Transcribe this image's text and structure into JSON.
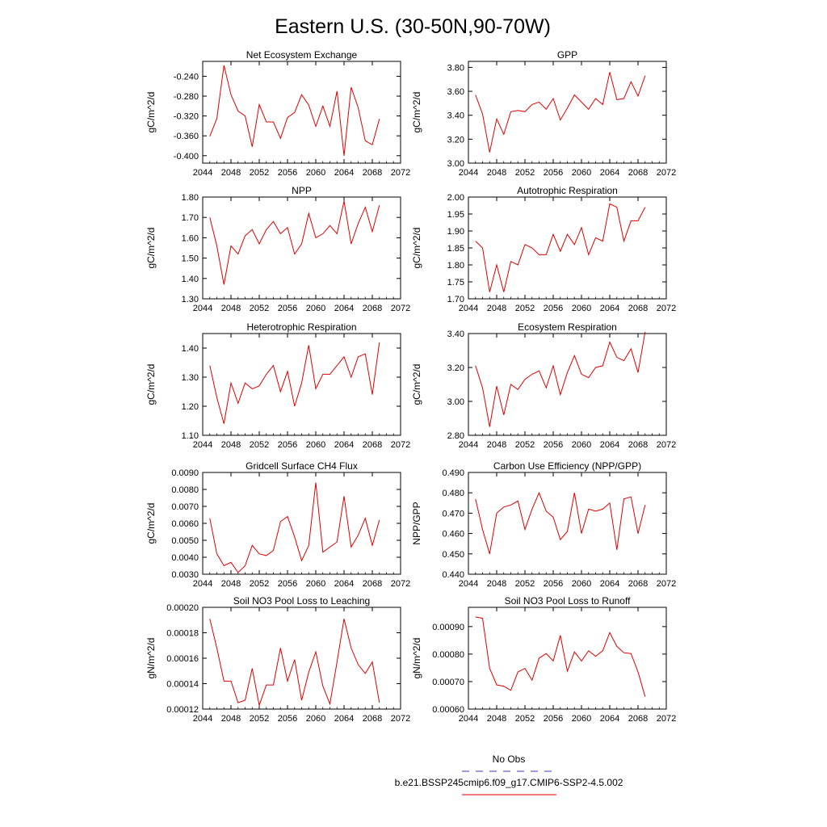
{
  "title": "Eastern U.S. (30-50N,90-70W)",
  "legend": {
    "placement": "bottom-right",
    "entries": [
      {
        "label": "No Obs",
        "color": "#3a3acc",
        "dash": "dashed"
      },
      {
        "label": "b.e21.BSSP245cmip6.f09_g17.CMIP6-SSP2-4.5.002",
        "color": "#e00000",
        "dash": "solid"
      }
    ]
  },
  "chart_data": [
    {
      "type": "line",
      "title": "Net Ecosystem Exchange",
      "ylabel": "gC/m^2/d",
      "xlim": [
        2044,
        2072
      ],
      "xticks": [
        "2044",
        "2048",
        "2052",
        "2056",
        "2060",
        "2064",
        "2068",
        "2072"
      ],
      "ylim": [
        -0.415,
        -0.21
      ],
      "yticks": [
        "-0.240",
        "-0.280",
        "-0.320",
        "-0.360",
        "-0.400"
      ],
      "ytick_values": [
        -0.24,
        -0.28,
        -0.32,
        -0.36,
        -0.4
      ],
      "series": [
        {
          "color": "#e00000",
          "x": [
            2045,
            2046,
            2047,
            2048,
            2049,
            2050,
            2051,
            2052,
            2053,
            2054,
            2055,
            2056,
            2057,
            2058,
            2059,
            2060,
            2061,
            2062,
            2063,
            2064,
            2065,
            2066,
            2067,
            2068,
            2069
          ],
          "values": [
            -0.361,
            -0.325,
            -0.218,
            -0.277,
            -0.31,
            -0.32,
            -0.382,
            -0.297,
            -0.332,
            -0.332,
            -0.365,
            -0.323,
            -0.313,
            -0.277,
            -0.298,
            -0.341,
            -0.3,
            -0.341,
            -0.27,
            -0.4,
            -0.262,
            -0.303,
            -0.37,
            -0.378,
            -0.326
          ]
        }
      ]
    },
    {
      "type": "line",
      "title": "GPP",
      "ylabel": "gC/m^2/d",
      "xlim": [
        2044,
        2072
      ],
      "xticks": [
        "2044",
        "2048",
        "2052",
        "2056",
        "2060",
        "2064",
        "2068",
        "2072"
      ],
      "ylim": [
        3.0,
        3.85
      ],
      "yticks": [
        "3.00",
        "3.20",
        "3.40",
        "3.60",
        "3.80"
      ],
      "ytick_values": [
        3.0,
        3.2,
        3.4,
        3.6,
        3.8
      ],
      "series": [
        {
          "color": "#e00000",
          "x": [
            2045,
            2046,
            2047,
            2048,
            2049,
            2050,
            2051,
            2052,
            2053,
            2054,
            2055,
            2056,
            2057,
            2058,
            2059,
            2060,
            2061,
            2062,
            2063,
            2064,
            2065,
            2066,
            2067,
            2068,
            2069
          ],
          "values": [
            3.57,
            3.41,
            3.09,
            3.37,
            3.24,
            3.43,
            3.44,
            3.43,
            3.49,
            3.51,
            3.45,
            3.54,
            3.36,
            3.46,
            3.57,
            3.51,
            3.45,
            3.54,
            3.49,
            3.76,
            3.53,
            3.54,
            3.68,
            3.56,
            3.73
          ]
        }
      ]
    },
    {
      "type": "line",
      "title": "NPP",
      "ylabel": "gC/m^2/d",
      "xlim": [
        2044,
        2072
      ],
      "xticks": [
        "2044",
        "2048",
        "2052",
        "2056",
        "2060",
        "2064",
        "2068",
        "2072"
      ],
      "ylim": [
        1.3,
        1.8
      ],
      "yticks": [
        "1.30",
        "1.40",
        "1.50",
        "1.60",
        "1.70",
        "1.80"
      ],
      "ytick_values": [
        1.3,
        1.4,
        1.5,
        1.6,
        1.7,
        1.8
      ],
      "series": [
        {
          "color": "#e00000",
          "x": [
            2045,
            2046,
            2047,
            2048,
            2049,
            2050,
            2051,
            2052,
            2053,
            2054,
            2055,
            2056,
            2057,
            2058,
            2059,
            2060,
            2061,
            2062,
            2063,
            2064,
            2065,
            2066,
            2067,
            2068,
            2069
          ],
          "values": [
            1.7,
            1.56,
            1.37,
            1.56,
            1.52,
            1.61,
            1.64,
            1.57,
            1.64,
            1.68,
            1.62,
            1.65,
            1.52,
            1.57,
            1.72,
            1.6,
            1.62,
            1.66,
            1.62,
            1.78,
            1.57,
            1.67,
            1.75,
            1.63,
            1.76
          ]
        }
      ]
    },
    {
      "type": "line",
      "title": "Autotrophic Respiration",
      "ylabel": "gC/m^2/d",
      "xlim": [
        2044,
        2072
      ],
      "xticks": [
        "2044",
        "2048",
        "2052",
        "2056",
        "2060",
        "2064",
        "2068",
        "2072"
      ],
      "ylim": [
        1.7,
        2.0
      ],
      "yticks": [
        "1.70",
        "1.75",
        "1.80",
        "1.85",
        "1.90",
        "1.95",
        "2.00"
      ],
      "ytick_values": [
        1.7,
        1.75,
        1.8,
        1.85,
        1.9,
        1.95,
        2.0
      ],
      "series": [
        {
          "color": "#e00000",
          "x": [
            2045,
            2046,
            2047,
            2048,
            2049,
            2050,
            2051,
            2052,
            2053,
            2054,
            2055,
            2056,
            2057,
            2058,
            2059,
            2060,
            2061,
            2062,
            2063,
            2064,
            2065,
            2066,
            2067,
            2068,
            2069
          ],
          "values": [
            1.87,
            1.85,
            1.72,
            1.8,
            1.72,
            1.81,
            1.8,
            1.86,
            1.85,
            1.83,
            1.83,
            1.89,
            1.84,
            1.89,
            1.86,
            1.91,
            1.83,
            1.88,
            1.87,
            1.98,
            1.97,
            1.87,
            1.93,
            1.93,
            1.97
          ]
        }
      ]
    },
    {
      "type": "line",
      "title": "Heterotrophic Respiration",
      "ylabel": "gC/m^2/d",
      "xlim": [
        2044,
        2072
      ],
      "xticks": [
        "2044",
        "2048",
        "2052",
        "2056",
        "2060",
        "2064",
        "2068",
        "2072"
      ],
      "ylim": [
        1.1,
        1.45
      ],
      "yticks": [
        "1.10",
        "1.20",
        "1.30",
        "1.40"
      ],
      "ytick_values": [
        1.1,
        1.2,
        1.3,
        1.4
      ],
      "series": [
        {
          "color": "#e00000",
          "x": [
            2045,
            2046,
            2047,
            2048,
            2049,
            2050,
            2051,
            2052,
            2053,
            2054,
            2055,
            2056,
            2057,
            2058,
            2059,
            2060,
            2061,
            2062,
            2063,
            2064,
            2065,
            2066,
            2067,
            2068,
            2069
          ],
          "values": [
            1.34,
            1.23,
            1.14,
            1.28,
            1.21,
            1.28,
            1.26,
            1.27,
            1.31,
            1.34,
            1.25,
            1.32,
            1.2,
            1.28,
            1.41,
            1.26,
            1.31,
            1.31,
            1.34,
            1.37,
            1.3,
            1.37,
            1.38,
            1.24,
            1.42
          ]
        }
      ]
    },
    {
      "type": "line",
      "title": "Ecosystem Respiration",
      "ylabel": "gC/m^2/d",
      "xlim": [
        2044,
        2072
      ],
      "xticks": [
        "2044",
        "2048",
        "2052",
        "2056",
        "2060",
        "2064",
        "2068",
        "2072"
      ],
      "ylim": [
        2.8,
        3.4
      ],
      "yticks": [
        "2.80",
        "3.00",
        "3.20",
        "3.40"
      ],
      "ytick_values": [
        2.8,
        3.0,
        3.2,
        3.4
      ],
      "series": [
        {
          "color": "#e00000",
          "x": [
            2045,
            2046,
            2047,
            2048,
            2049,
            2050,
            2051,
            2052,
            2053,
            2054,
            2055,
            2056,
            2057,
            2058,
            2059,
            2060,
            2061,
            2062,
            2063,
            2064,
            2065,
            2066,
            2067,
            2068,
            2069
          ],
          "values": [
            3.21,
            3.08,
            2.85,
            3.09,
            2.92,
            3.1,
            3.07,
            3.13,
            3.16,
            3.18,
            3.08,
            3.21,
            3.04,
            3.17,
            3.27,
            3.16,
            3.14,
            3.2,
            3.21,
            3.35,
            3.26,
            3.24,
            3.31,
            3.17,
            3.41
          ]
        }
      ]
    },
    {
      "type": "line",
      "title": "Gridcell Surface CH4 Flux",
      "ylabel": "gC/m^2/d",
      "xlim": [
        2044,
        2072
      ],
      "xticks": [
        "2044",
        "2048",
        "2052",
        "2056",
        "2060",
        "2064",
        "2068",
        "2072"
      ],
      "ylim": [
        0.003,
        0.009
      ],
      "yticks": [
        "0.0030",
        "0.0040",
        "0.0050",
        "0.0060",
        "0.0070",
        "0.0080",
        "0.0090"
      ],
      "ytick_values": [
        0.003,
        0.004,
        0.005,
        0.006,
        0.007,
        0.008,
        0.009
      ],
      "series": [
        {
          "color": "#e00000",
          "x": [
            2045,
            2046,
            2047,
            2048,
            2049,
            2050,
            2051,
            2052,
            2053,
            2054,
            2055,
            2056,
            2057,
            2058,
            2059,
            2060,
            2061,
            2062,
            2063,
            2064,
            2065,
            2066,
            2067,
            2068,
            2069
          ],
          "values": [
            0.0063,
            0.0042,
            0.0035,
            0.0037,
            0.0031,
            0.0035,
            0.0047,
            0.0042,
            0.0041,
            0.0044,
            0.0061,
            0.0064,
            0.0052,
            0.0038,
            0.0047,
            0.0084,
            0.0043,
            0.0046,
            0.0049,
            0.0076,
            0.0046,
            0.0053,
            0.0063,
            0.0047,
            0.0062
          ]
        }
      ]
    },
    {
      "type": "line",
      "title": "Carbon Use Efficiency (NPP/GPP)",
      "ylabel": "NPP/GPP",
      "xlim": [
        2044,
        2072
      ],
      "xticks": [
        "2044",
        "2048",
        "2052",
        "2056",
        "2060",
        "2064",
        "2068",
        "2072"
      ],
      "ylim": [
        0.44,
        0.49
      ],
      "yticks": [
        "0.440",
        "0.450",
        "0.460",
        "0.470",
        "0.480",
        "0.490"
      ],
      "ytick_values": [
        0.44,
        0.45,
        0.46,
        0.47,
        0.48,
        0.49
      ],
      "series": [
        {
          "color": "#e00000",
          "x": [
            2045,
            2046,
            2047,
            2048,
            2049,
            2050,
            2051,
            2052,
            2053,
            2054,
            2055,
            2056,
            2057,
            2058,
            2059,
            2060,
            2061,
            2062,
            2063,
            2064,
            2065,
            2066,
            2067,
            2068,
            2069
          ],
          "values": [
            0.477,
            0.462,
            0.45,
            0.47,
            0.473,
            0.474,
            0.476,
            0.462,
            0.472,
            0.48,
            0.471,
            0.468,
            0.457,
            0.461,
            0.48,
            0.46,
            0.472,
            0.471,
            0.472,
            0.475,
            0.452,
            0.477,
            0.478,
            0.46,
            0.474
          ]
        }
      ]
    },
    {
      "type": "line",
      "title": "Soil NO3 Pool Loss to Leaching",
      "ylabel": "gN/m^2/d",
      "xlim": [
        2044,
        2072
      ],
      "xticks": [
        "2044",
        "2048",
        "2052",
        "2056",
        "2060",
        "2064",
        "2068",
        "2072"
      ],
      "ylim": [
        0.00012,
        0.0002
      ],
      "yticks": [
        "0.00012",
        "0.00014",
        "0.00016",
        "0.00018",
        "0.00020"
      ],
      "ytick_values": [
        0.00012,
        0.00014,
        0.00016,
        0.00018,
        0.0002
      ],
      "series": [
        {
          "color": "#e00000",
          "x": [
            2045,
            2046,
            2047,
            2048,
            2049,
            2050,
            2051,
            2052,
            2053,
            2054,
            2055,
            2056,
            2057,
            2058,
            2059,
            2060,
            2061,
            2062,
            2063,
            2064,
            2065,
            2066,
            2067,
            2068,
            2069
          ],
          "values": [
            0.000191,
            0.000168,
            0.000142,
            0.000142,
            0.000125,
            0.000127,
            0.000152,
            0.000123,
            0.000139,
            0.000139,
            0.000168,
            0.000142,
            0.000159,
            0.000127,
            0.000149,
            0.000165,
            0.000138,
            0.000124,
            0.000157,
            0.000191,
            0.000168,
            0.000155,
            0.000148,
            0.000157,
            0.000125
          ]
        }
      ]
    },
    {
      "type": "line",
      "title": "Soil NO3 Pool Loss to Runoff",
      "ylabel": "gN/m^2/d",
      "xlim": [
        2044,
        2072
      ],
      "xticks": [
        "2044",
        "2048",
        "2052",
        "2056",
        "2060",
        "2064",
        "2068",
        "2072"
      ],
      "ylim": [
        0.0006,
        0.00097
      ],
      "yticks": [
        "0.00060",
        "0.00070",
        "0.00080",
        "0.00090"
      ],
      "ytick_values": [
        0.0006,
        0.0007,
        0.0008,
        0.0009
      ],
      "series": [
        {
          "color": "#e00000",
          "x": [
            2045,
            2046,
            2047,
            2048,
            2049,
            2050,
            2051,
            2052,
            2053,
            2054,
            2055,
            2056,
            2057,
            2058,
            2059,
            2060,
            2061,
            2062,
            2063,
            2064,
            2065,
            2066,
            2067,
            2068,
            2069
          ],
          "values": [
            0.000935,
            0.00093,
            0.000748,
            0.000688,
            0.000683,
            0.000668,
            0.000735,
            0.000748,
            0.000705,
            0.000785,
            0.000802,
            0.000775,
            0.000868,
            0.000738,
            0.000808,
            0.000775,
            0.000812,
            0.000792,
            0.000812,
            0.000878,
            0.000828,
            0.000805,
            0.000802,
            0.000735,
            0.000645
          ]
        }
      ]
    }
  ]
}
